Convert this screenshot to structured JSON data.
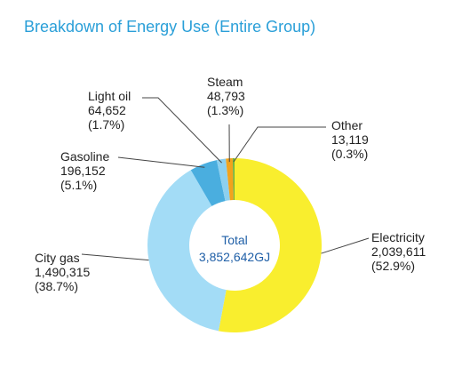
{
  "title": "Breakdown of Energy Use (Entire Group)",
  "center_label": {
    "line1": "Total",
    "line2": "3,852,642GJ"
  },
  "chart_data": {
    "type": "pie",
    "donut": true,
    "title": "Breakdown of Energy Use (Entire Group)",
    "total": 3852642,
    "total_label": "3,852,642GJ",
    "unit": "GJ",
    "slices": [
      {
        "name": "Electricity",
        "value": 2039611,
        "value_label": "2,039,611",
        "percent": "(52.9%)",
        "color": "#f9ee2e"
      },
      {
        "name": "City gas",
        "value": 1490315,
        "value_label": "1,490,315",
        "percent": "(38.7%)",
        "color": "#a3dcf6"
      },
      {
        "name": "Gasoline",
        "value": 196152,
        "value_label": "196,152",
        "percent": "(5.1%)",
        "color": "#4aaedf"
      },
      {
        "name": "Light oil",
        "value": 64652,
        "value_label": "64,652",
        "percent": "(1.7%)",
        "color": "#8dd0ef"
      },
      {
        "name": "Steam",
        "value": 48793,
        "value_label": "48,793",
        "percent": "(1.3%)",
        "color": "#f2a31c"
      },
      {
        "name": "Other",
        "value": 13119,
        "value_label": "13,119",
        "percent": "(0.3%)",
        "color": "#6cb43f"
      }
    ]
  }
}
